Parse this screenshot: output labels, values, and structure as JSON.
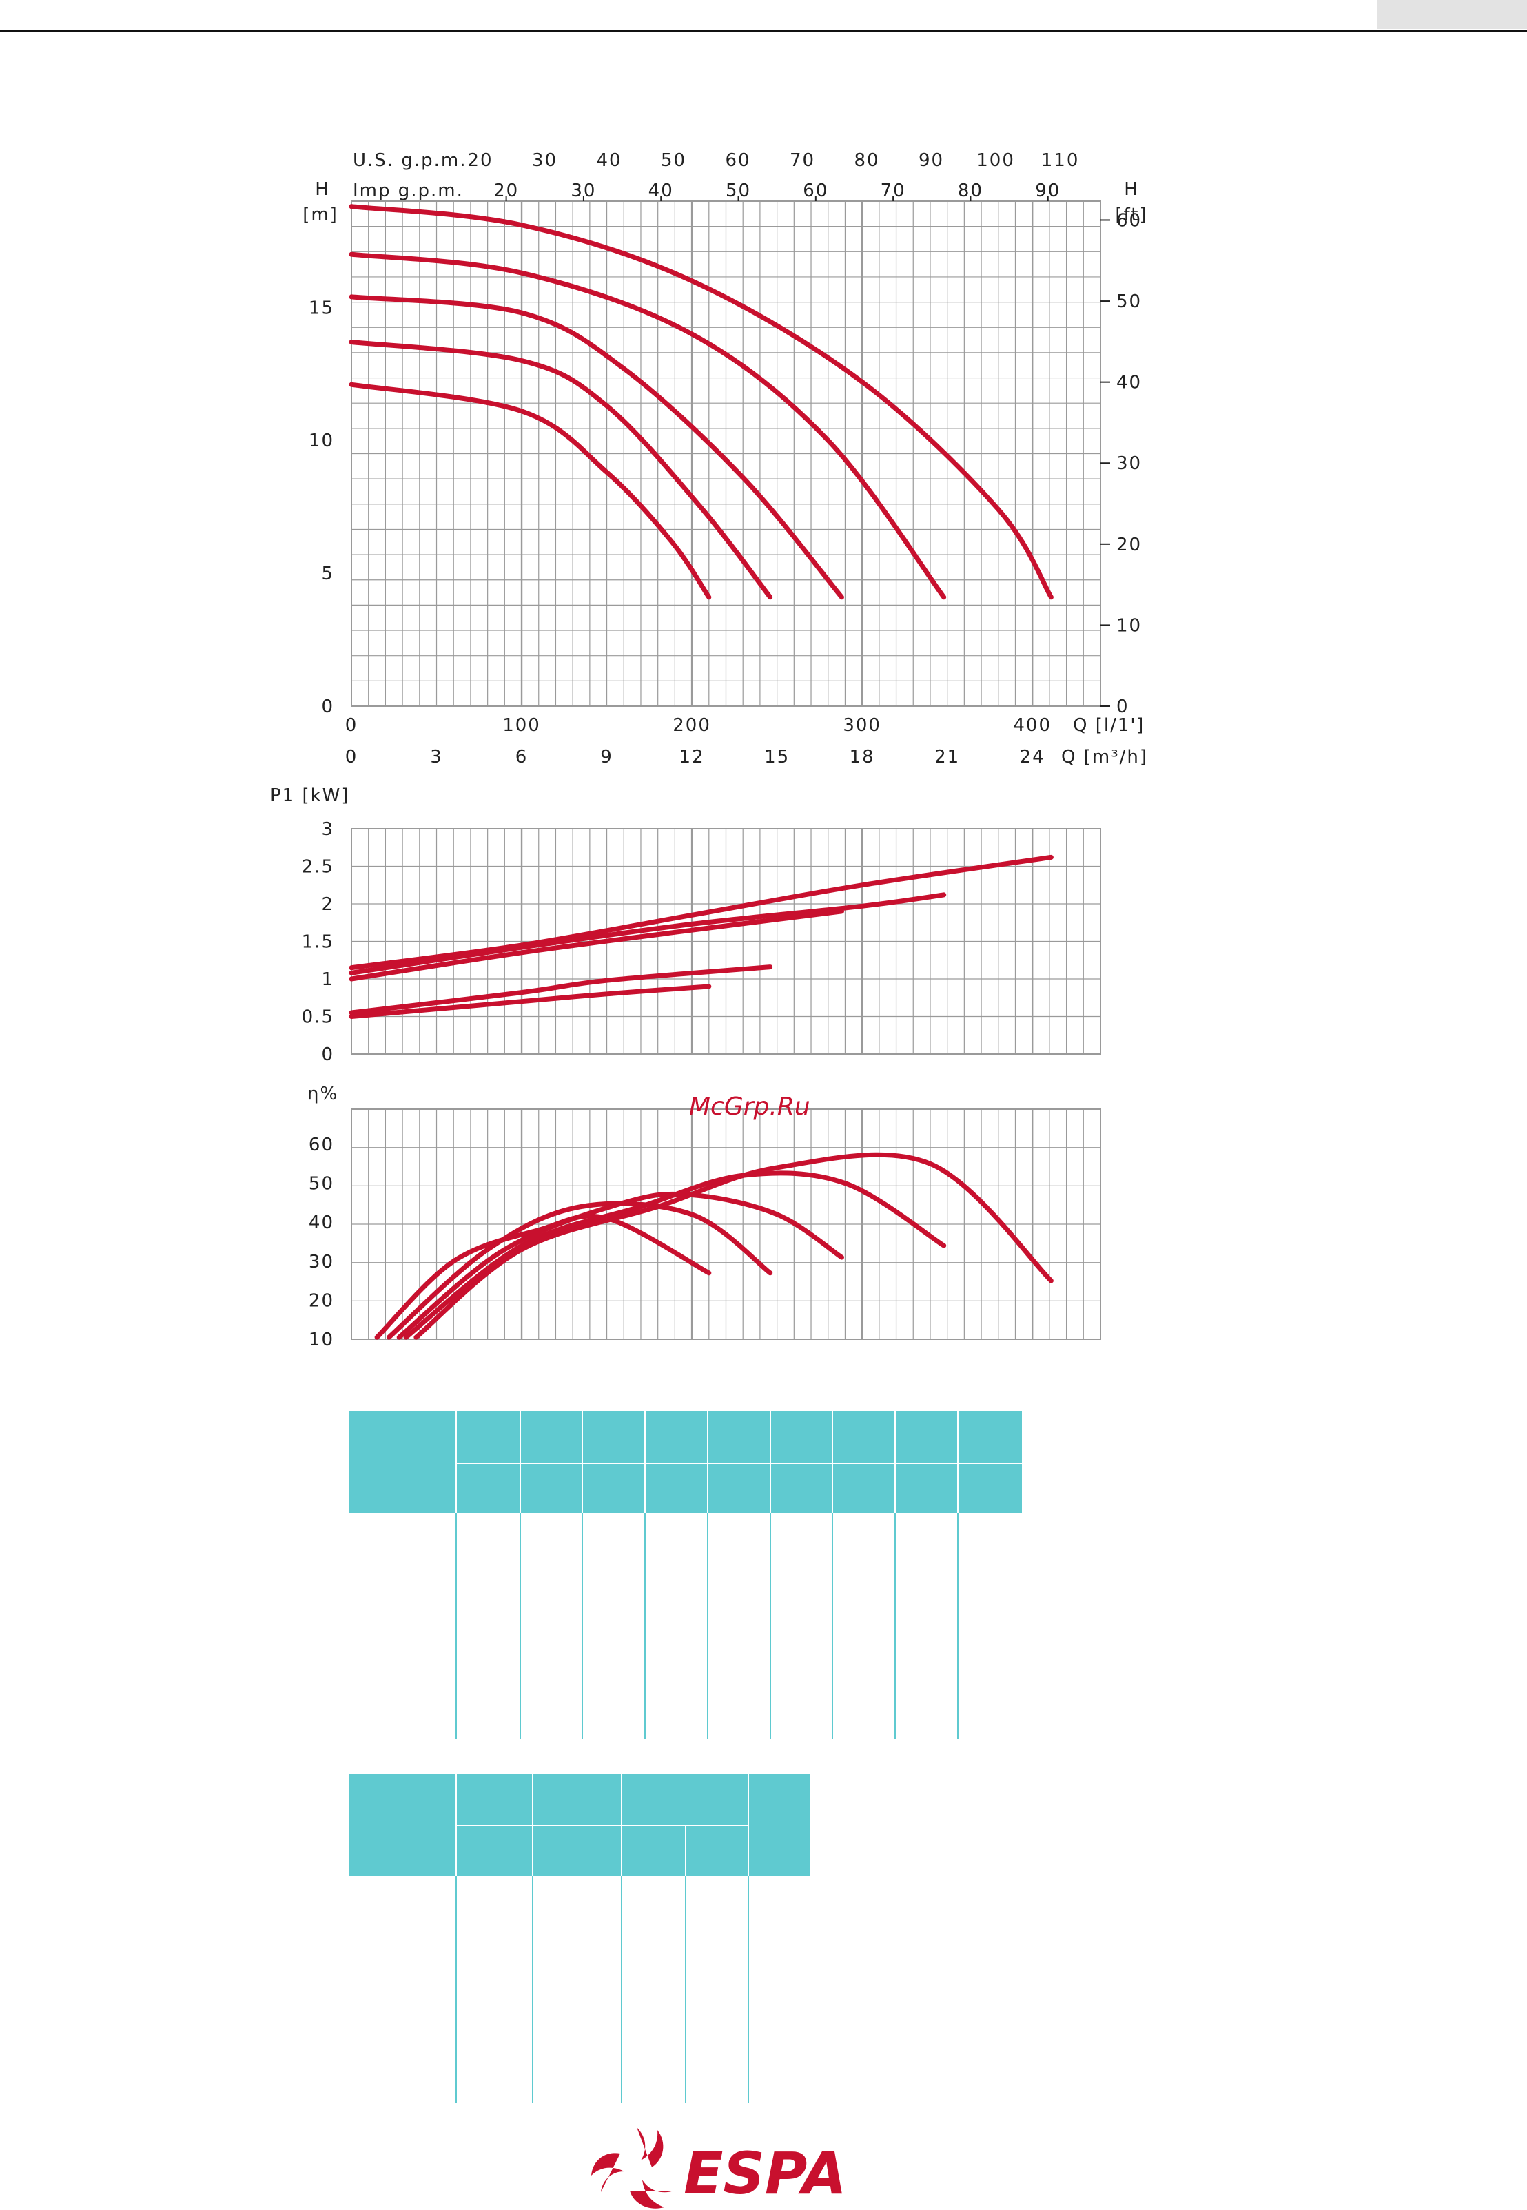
{
  "colors": {
    "curve": "#c8102e",
    "teal": "#5fcad0",
    "grid": "#9a9a9a",
    "text": "#222222"
  },
  "watermark": "McGrp.Ru",
  "logo": {
    "text": "ESPA",
    "icon": "espa-swirl-icon"
  },
  "chart_data": [
    {
      "type": "line",
      "name": "head",
      "axes": {
        "y_left_label": "H\n[m]",
        "y_left_ticks": [
          "0",
          "5",
          "10",
          "15"
        ],
        "y_right_label": "H\n[ft]",
        "y_right_ticks": [
          "0",
          "10",
          "20",
          "30",
          "40",
          "50",
          "60"
        ],
        "x_top1_label": "U.S. g.p.m.",
        "x_top1_ticks": [
          "20",
          "30",
          "40",
          "50",
          "60",
          "70",
          "80",
          "90",
          "100",
          "110"
        ],
        "x_top2_label": "Imp g.p.m.",
        "x_top2_ticks": [
          "20",
          "30",
          "40",
          "50",
          "60",
          "70",
          "80",
          "90"
        ],
        "x_bottom1_label": "Q [l/1']",
        "x_bottom1_ticks": [
          "0",
          "100",
          "200",
          "300",
          "400"
        ],
        "x_bottom2_label": "Q [m³/h]",
        "x_bottom2_ticks": [
          "0",
          "3",
          "6",
          "9",
          "12",
          "15",
          "18",
          "21",
          "24"
        ]
      },
      "xlim": [
        0,
        440
      ],
      "ylim": [
        0,
        19
      ],
      "series": [
        {
          "values": [
            [
              0,
              18.8
            ],
            [
              100,
              18.1
            ],
            [
              200,
              16.0
            ],
            [
              300,
              12.2
            ],
            [
              380,
              7.4
            ],
            [
              411,
              4.1
            ]
          ]
        },
        {
          "values": [
            [
              0,
              17.0
            ],
            [
              100,
              16.3
            ],
            [
              200,
              14.0
            ],
            [
              280,
              10.0
            ],
            [
              348,
              4.1
            ]
          ]
        },
        {
          "values": [
            [
              0,
              15.4
            ],
            [
              100,
              14.8
            ],
            [
              160,
              12.7
            ],
            [
              230,
              8.6
            ],
            [
              288,
              4.1
            ]
          ]
        },
        {
          "values": [
            [
              0,
              13.7
            ],
            [
              100,
              13.0
            ],
            [
              150,
              11.3
            ],
            [
              205,
              7.5
            ],
            [
              246,
              4.1
            ]
          ]
        },
        {
          "values": [
            [
              0,
              12.1
            ],
            [
              100,
              11.1
            ],
            [
              150,
              8.8
            ],
            [
              188,
              6.2
            ],
            [
              210,
              4.1
            ]
          ]
        }
      ]
    },
    {
      "type": "line",
      "name": "power",
      "axes": {
        "y_label": "P1 [kW]",
        "y_ticks": [
          "0",
          "0.5",
          "1",
          "1.5",
          "2",
          "2.5",
          "3"
        ]
      },
      "xlim": [
        0,
        440
      ],
      "ylim": [
        0,
        3
      ],
      "series": [
        {
          "values": [
            [
              0,
              1.15
            ],
            [
              100,
              1.45
            ],
            [
              200,
              1.85
            ],
            [
              300,
              2.25
            ],
            [
              411,
              2.62
            ]
          ]
        },
        {
          "values": [
            [
              0,
              1.08
            ],
            [
              100,
              1.42
            ],
            [
              200,
              1.73
            ],
            [
              300,
              1.97
            ],
            [
              348,
              2.12
            ]
          ]
        },
        {
          "values": [
            [
              0,
              1.0
            ],
            [
              100,
              1.35
            ],
            [
              200,
              1.65
            ],
            [
              288,
              1.9
            ]
          ]
        },
        {
          "values": [
            [
              0,
              0.55
            ],
            [
              100,
              0.82
            ],
            [
              150,
              0.98
            ],
            [
              246,
              1.16
            ]
          ]
        },
        {
          "values": [
            [
              0,
              0.5
            ],
            [
              100,
              0.7
            ],
            [
              150,
              0.8
            ],
            [
              210,
              0.9
            ]
          ]
        }
      ]
    },
    {
      "type": "line",
      "name": "efficiency",
      "axes": {
        "y_label": "η%",
        "y_ticks": [
          "10",
          "20",
          "30",
          "40",
          "50",
          "60"
        ]
      },
      "xlim": [
        0,
        440
      ],
      "ylim": [
        10,
        69
      ],
      "series": [
        {
          "values": [
            [
              38,
              10.5
            ],
            [
              100,
              33
            ],
            [
              180,
              44
            ],
            [
              250,
              54
            ],
            [
              340,
              55
            ],
            [
              411,
              25
            ]
          ]
        },
        {
          "values": [
            [
              32,
              10.5
            ],
            [
              100,
              34
            ],
            [
              170,
              44
            ],
            [
              230,
              52
            ],
            [
              290,
              50
            ],
            [
              348,
              34
            ]
          ]
        },
        {
          "values": [
            [
              28,
              10.5
            ],
            [
              90,
              33
            ],
            [
              160,
              45
            ],
            [
              200,
              47
            ],
            [
              250,
              42
            ],
            [
              288,
              31
            ]
          ]
        },
        {
          "values": [
            [
              22,
              10.5
            ],
            [
              80,
              33
            ],
            [
              135,
              44
            ],
            [
              200,
              42
            ],
            [
              246,
              27
            ]
          ]
        },
        {
          "values": [
            [
              15,
              10.5
            ],
            [
              60,
              30
            ],
            [
              110,
              38
            ],
            [
              150,
              41
            ],
            [
              210,
              27
            ]
          ]
        }
      ]
    }
  ]
}
